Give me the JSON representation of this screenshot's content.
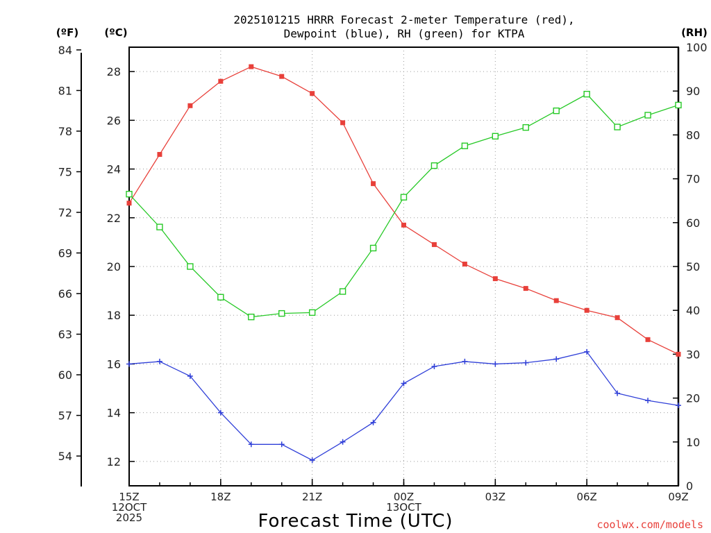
{
  "chart_data": {
    "type": "line",
    "title_line1": "2025101215 HRRR Forecast 2-meter Temperature (red),",
    "title_line2": "Dewpoint (blue), RH (green) for KTPA",
    "xlabel": "Forecast Time (UTC)",
    "credit": "coolwx.com/models",
    "unit_f": "(ºF)",
    "unit_c": "(ºC)",
    "unit_rh": "(RH)",
    "x_hours": [
      0,
      1,
      2,
      3,
      4,
      5,
      6,
      7,
      8,
      9,
      10,
      11,
      12,
      13,
      14,
      15,
      16,
      17,
      18
    ],
    "x_ticks": [
      {
        "hour": 0,
        "lines": [
          "15Z",
          "12OCT",
          "2025"
        ]
      },
      {
        "hour": 3,
        "lines": [
          "18Z"
        ]
      },
      {
        "hour": 6,
        "lines": [
          "21Z"
        ]
      },
      {
        "hour": 9,
        "lines": [
          "00Z",
          "13OCT"
        ]
      },
      {
        "hour": 12,
        "lines": [
          "03Z"
        ]
      },
      {
        "hour": 15,
        "lines": [
          "06Z"
        ]
      },
      {
        "hour": 18,
        "lines": [
          "09Z"
        ]
      }
    ],
    "ylim_c": [
      11,
      29
    ],
    "ylim_rh": [
      0,
      100
    ],
    "yticks_c": [
      "12",
      "14",
      "16",
      "18",
      "20",
      "22",
      "24",
      "26",
      "28"
    ],
    "yticks_f": [
      "54",
      "57",
      "60",
      "63",
      "66",
      "69",
      "72",
      "75",
      "78",
      "81",
      "84"
    ],
    "yticks_rh": [
      "0",
      "10",
      "20",
      "30",
      "40",
      "50",
      "60",
      "70",
      "80",
      "90",
      "100"
    ],
    "series": [
      {
        "name": "Temperature",
        "color": "#e8403a",
        "marker": "filled-square",
        "values": [
          22.6,
          24.6,
          26.6,
          27.6,
          28.2,
          27.8,
          27.1,
          25.9,
          23.4,
          21.7,
          20.9,
          20.1,
          19.5,
          19.1,
          18.6,
          18.2,
          17.9,
          17.0,
          16.4
        ]
      },
      {
        "name": "Dewpoint",
        "color": "#2f3fd8",
        "marker": "plus",
        "values": [
          16.0,
          16.1,
          15.5,
          14.0,
          12.7,
          12.7,
          12.05,
          12.8,
          13.6,
          15.2,
          15.9,
          16.1,
          16.0,
          16.05,
          16.2,
          16.5,
          14.8,
          14.5,
          14.3
        ]
      },
      {
        "name": "Relative Humidity",
        "color": "#26c926",
        "marker": "open-square",
        "axis": "rh",
        "values": [
          66.5,
          59.0,
          50.0,
          43.0,
          38.5,
          39.3,
          39.5,
          44.3,
          54.2,
          65.8,
          73.0,
          77.5,
          79.7,
          81.7,
          85.5,
          89.3,
          81.8,
          84.5,
          86.8
        ]
      }
    ]
  }
}
